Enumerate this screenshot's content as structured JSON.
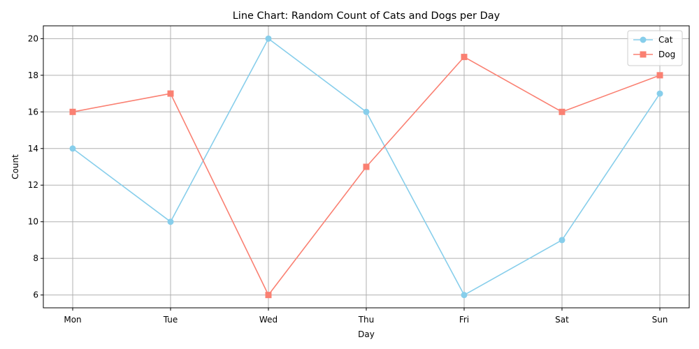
{
  "chart_data": {
    "type": "line",
    "title": "Line Chart: Random Count of Cats and Dogs per Day",
    "xlabel": "Day",
    "ylabel": "Count",
    "categories": [
      "Mon",
      "Tue",
      "Wed",
      "Thu",
      "Fri",
      "Sat",
      "Sun"
    ],
    "series": [
      {
        "name": "Cat",
        "values": [
          14,
          10,
          20,
          16,
          6,
          9,
          17
        ],
        "color": "#87ceeb",
        "marker": "circle"
      },
      {
        "name": "Dog",
        "values": [
          16,
          17,
          6,
          13,
          19,
          16,
          18
        ],
        "color": "#fa8072",
        "marker": "square"
      }
    ],
    "ylim": [
      5.3,
      20.7
    ],
    "yticks": [
      6,
      8,
      10,
      12,
      14,
      16,
      18,
      20
    ],
    "grid": true,
    "legend": "top-right"
  }
}
